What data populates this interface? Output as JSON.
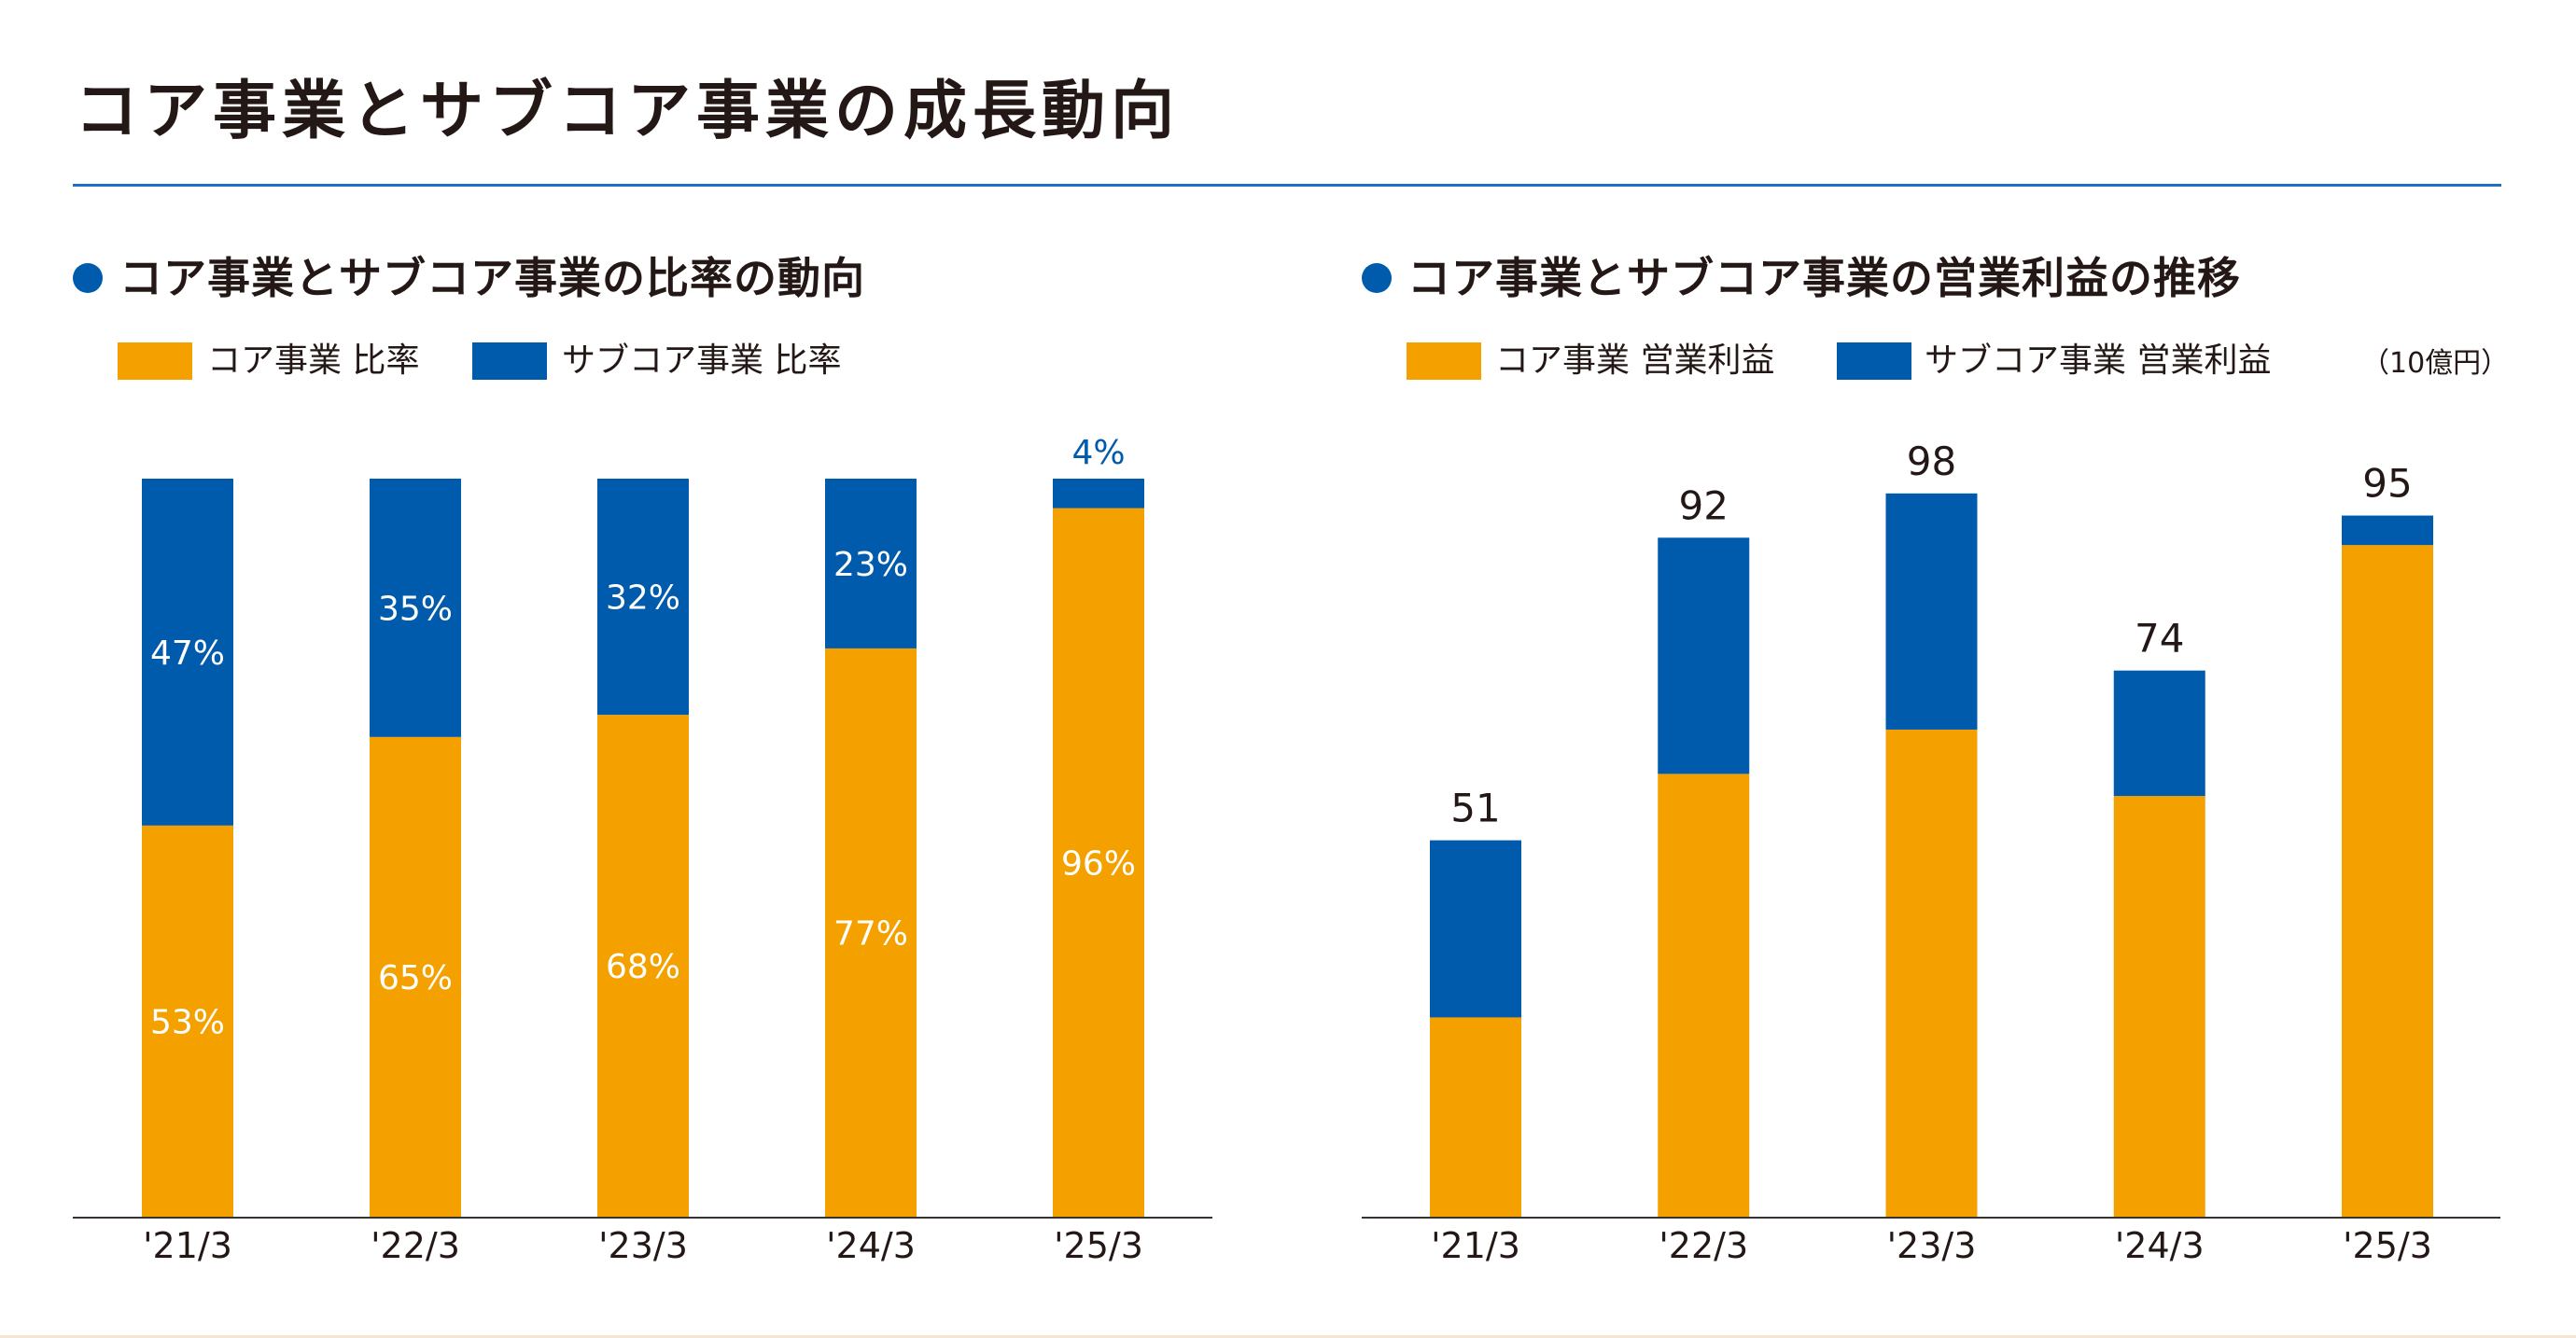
{
  "page": {
    "title": "コア事業とサブコア事業の成長動向"
  },
  "colors": {
    "core": "#f4a100",
    "subcore": "#005bac",
    "text": "#231815",
    "rule": "#1f6fc5",
    "axis": "#3a3230"
  },
  "left_panel": {
    "title": "コア事業とサブコア事業の比率の動向",
    "legend": [
      {
        "label": "コア事業 比率",
        "series": "core"
      },
      {
        "label": "サブコア事業 比率",
        "series": "subcore"
      }
    ]
  },
  "right_panel": {
    "title": "コア事業とサブコア事業の営業利益の推移",
    "legend": [
      {
        "label": "コア事業 営業利益",
        "series": "core"
      },
      {
        "label": "サブコア事業 営業利益",
        "series": "subcore"
      }
    ],
    "unit": "（10億円）"
  },
  "chart_data": [
    {
      "type": "bar",
      "stacked": true,
      "title": "コア事業とサブコア事業の比率の動向",
      "categories": [
        "'21/3",
        "'22/3",
        "'23/3",
        "'24/3",
        "'25/3"
      ],
      "series": [
        {
          "name": "コア事業 比率",
          "key": "core",
          "values": [
            53,
            65,
            68,
            77,
            96
          ],
          "labels": [
            "53%",
            "65%",
            "68%",
            "77%",
            "96%"
          ]
        },
        {
          "name": "サブコア事業 比率",
          "key": "subcore",
          "values": [
            47,
            35,
            32,
            23,
            4
          ],
          "labels": [
            "47%",
            "35%",
            "32%",
            "23%",
            "4%"
          ]
        }
      ],
      "ylim": [
        0,
        100
      ],
      "xlabel": "",
      "ylabel": "",
      "grid": false,
      "legend_position": "top-left"
    },
    {
      "type": "bar",
      "stacked": true,
      "title": "コア事業とサブコア事業の営業利益の推移",
      "categories": [
        "'21/3",
        "'22/3",
        "'23/3",
        "'24/3",
        "'25/3"
      ],
      "series": [
        {
          "name": "コア事業 営業利益",
          "key": "core",
          "values": [
            27,
            60,
            66,
            57,
            91
          ]
        },
        {
          "name": "サブコア事業 営業利益",
          "key": "subcore",
          "values": [
            24,
            32,
            32,
            17,
            4
          ]
        }
      ],
      "totals": [
        51,
        92,
        98,
        74,
        95
      ],
      "total_labels": [
        "51",
        "92",
        "98",
        "74",
        "95"
      ],
      "unit": "10億円",
      "ylim": [
        0,
        100
      ],
      "xlabel": "",
      "ylabel": "",
      "grid": false,
      "legend_position": "top-left"
    }
  ]
}
